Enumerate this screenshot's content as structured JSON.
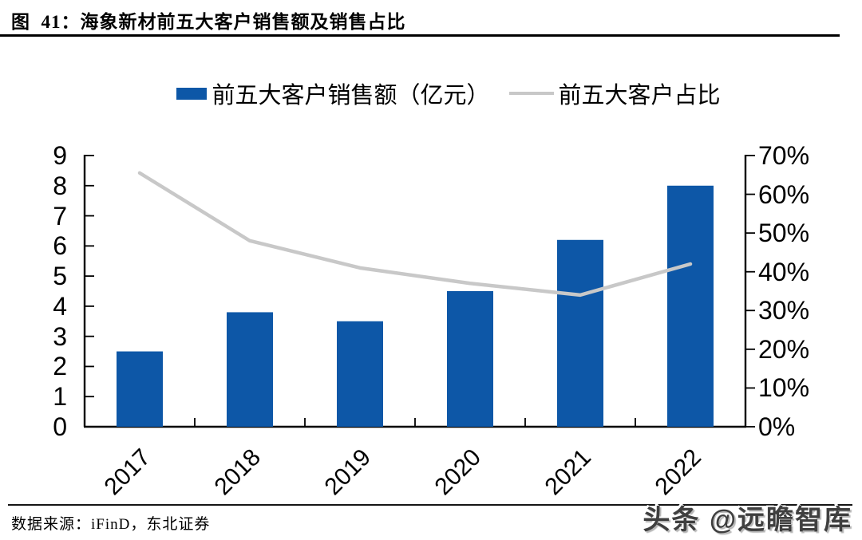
{
  "header": {
    "title": "图  41：海象新材前五大客户销售额及销售占比"
  },
  "legend": {
    "items": [
      {
        "swatch": "bar-swatch",
        "label": "前五大客户销售额（亿元）"
      },
      {
        "swatch": "line-swatch",
        "label": "前五大客户占比"
      }
    ]
  },
  "footer": {
    "source": "数据来源：iFinD，东北证券",
    "watermark": "头条 @远瞻智库"
  },
  "colors": {
    "bar": "#0D57A7",
    "line": "#C8C8C8",
    "axis": "#000000"
  },
  "chart_data": {
    "type": "combo-bar-line",
    "title": "海象新材前五大客户销售额及销售占比",
    "categories": [
      "2017",
      "2018",
      "2019",
      "2020",
      "2021",
      "2022"
    ],
    "series": [
      {
        "name": "前五大客户销售额（亿元）",
        "type": "bar",
        "axis": "left",
        "unit": "亿元",
        "values": [
          2.5,
          3.8,
          3.5,
          4.5,
          6.2,
          8.0
        ]
      },
      {
        "name": "前五大客户占比",
        "type": "line",
        "axis": "right",
        "unit": "%",
        "values": [
          65.5,
          48,
          41,
          37,
          34,
          42
        ]
      }
    ],
    "left_axis": {
      "min": 0,
      "max": 9,
      "step": 1,
      "tick_labels": [
        "0",
        "1",
        "2",
        "3",
        "4",
        "5",
        "6",
        "7",
        "8",
        "9"
      ]
    },
    "right_axis": {
      "min": 0,
      "max": 70,
      "step": 10,
      "tick_labels": [
        "0%",
        "10%",
        "20%",
        "30%",
        "40%",
        "50%",
        "60%",
        "70%"
      ]
    },
    "legend_position": "top",
    "grid": false
  }
}
